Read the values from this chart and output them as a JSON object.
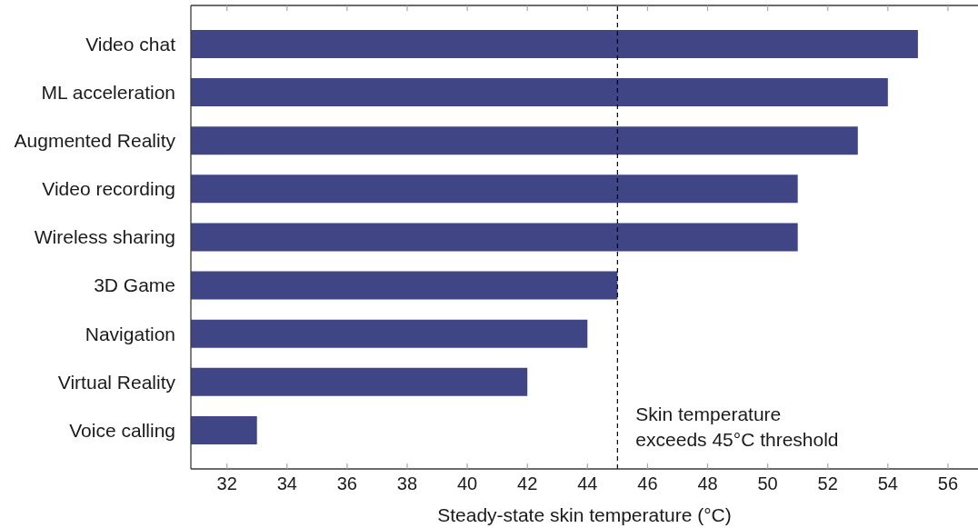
{
  "chart_data": {
    "type": "bar",
    "orientation": "horizontal",
    "xlabel": "Steady-state skin temperature (°C)",
    "categories": [
      "Video chat",
      "ML acceleration",
      "Augmented Reality",
      "Video recording",
      "Wireless sharing",
      "3D Game",
      "Navigation",
      "Virtual Reality",
      "Voice calling"
    ],
    "values": [
      55,
      54,
      53,
      51,
      51,
      45,
      44,
      42,
      33
    ],
    "color": "#404586",
    "xlim": [
      30.8,
      57
    ],
    "xticks": [
      32,
      34,
      36,
      38,
      40,
      42,
      44,
      46,
      48,
      50,
      52,
      54,
      56
    ],
    "ref_lines": [
      {
        "axis": "x",
        "value": 45,
        "label": "Skin temperature\nexceeds 45°C threshold",
        "color": "#000000",
        "line_style": "dashed"
      }
    ]
  }
}
